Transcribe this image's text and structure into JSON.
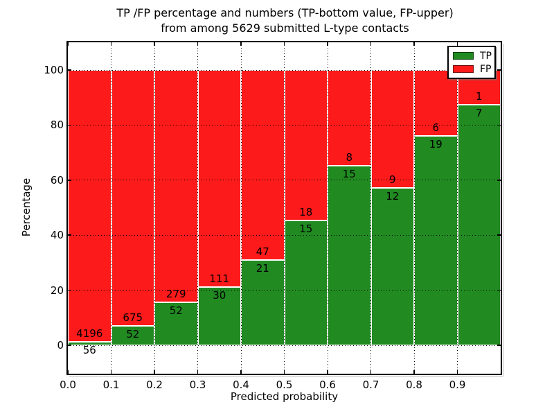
{
  "figure": {
    "title_line1": "TP /FP percentage and numbers (TP-bottom value, FP-upper)",
    "title_line2": "from among 5629 submitted L-type contacts"
  },
  "axes": {
    "ylabel": "Percentage",
    "xlabel": "Predicted probability",
    "ytick_labels": [
      "0",
      "20",
      "40",
      "60",
      "80",
      "100"
    ],
    "ytick_values": [
      0,
      20,
      40,
      60,
      80,
      100
    ],
    "xtick_labels": [
      "0.0",
      "0.1",
      "0.2",
      "0.3",
      "0.4",
      "0.5",
      "0.6",
      "0.7",
      "0.8",
      "0.9"
    ],
    "xtick_values": [
      0.0,
      0.1,
      0.2,
      0.3,
      0.4,
      0.5,
      0.6,
      0.7,
      0.8,
      0.9
    ]
  },
  "legend": {
    "items": [
      {
        "label": "TP",
        "color": "#218a21"
      },
      {
        "label": "FP",
        "color": "#fd1a1a"
      }
    ],
    "position": "upper right"
  },
  "colors": {
    "tp_green": "#218a21",
    "fp_red": "#fd1a1a",
    "bar_edge": "#ffffff",
    "frame": "#000000",
    "grid": "#000000",
    "background": "#ffffff"
  },
  "chart_data": {
    "type": "bar",
    "stacked": true,
    "normalized": "each bar totals 100 percent",
    "title": "TP /FP percentage and numbers (TP-bottom value, FP-upper) from among 5629 submitted L-type contacts",
    "xlabel": "Predicted probability",
    "ylabel": "Percentage",
    "x_bin_start": [
      0.0,
      0.1,
      0.2,
      0.3,
      0.4,
      0.5,
      0.6,
      0.7,
      0.8,
      0.9
    ],
    "x_bin_width": 0.1,
    "series": [
      {
        "name": "TP",
        "color": "#218a21",
        "counts": [
          56,
          52,
          52,
          30,
          21,
          15,
          15,
          12,
          19,
          7
        ]
      },
      {
        "name": "FP",
        "color": "#fd1a1a",
        "counts": [
          4196,
          675,
          279,
          111,
          47,
          18,
          8,
          9,
          6,
          1
        ]
      }
    ],
    "tp_percent_of_bar": [
      1.32,
      7.15,
      15.71,
      21.28,
      30.88,
      45.45,
      65.22,
      57.14,
      76.0,
      87.5
    ],
    "total_contacts": 5629,
    "xlim": [
      0.0,
      1.0
    ],
    "ylim": [
      -10.3,
      110.1
    ],
    "grid": "dotted, both axes, drawn over bars",
    "legend_position": "upper right"
  }
}
